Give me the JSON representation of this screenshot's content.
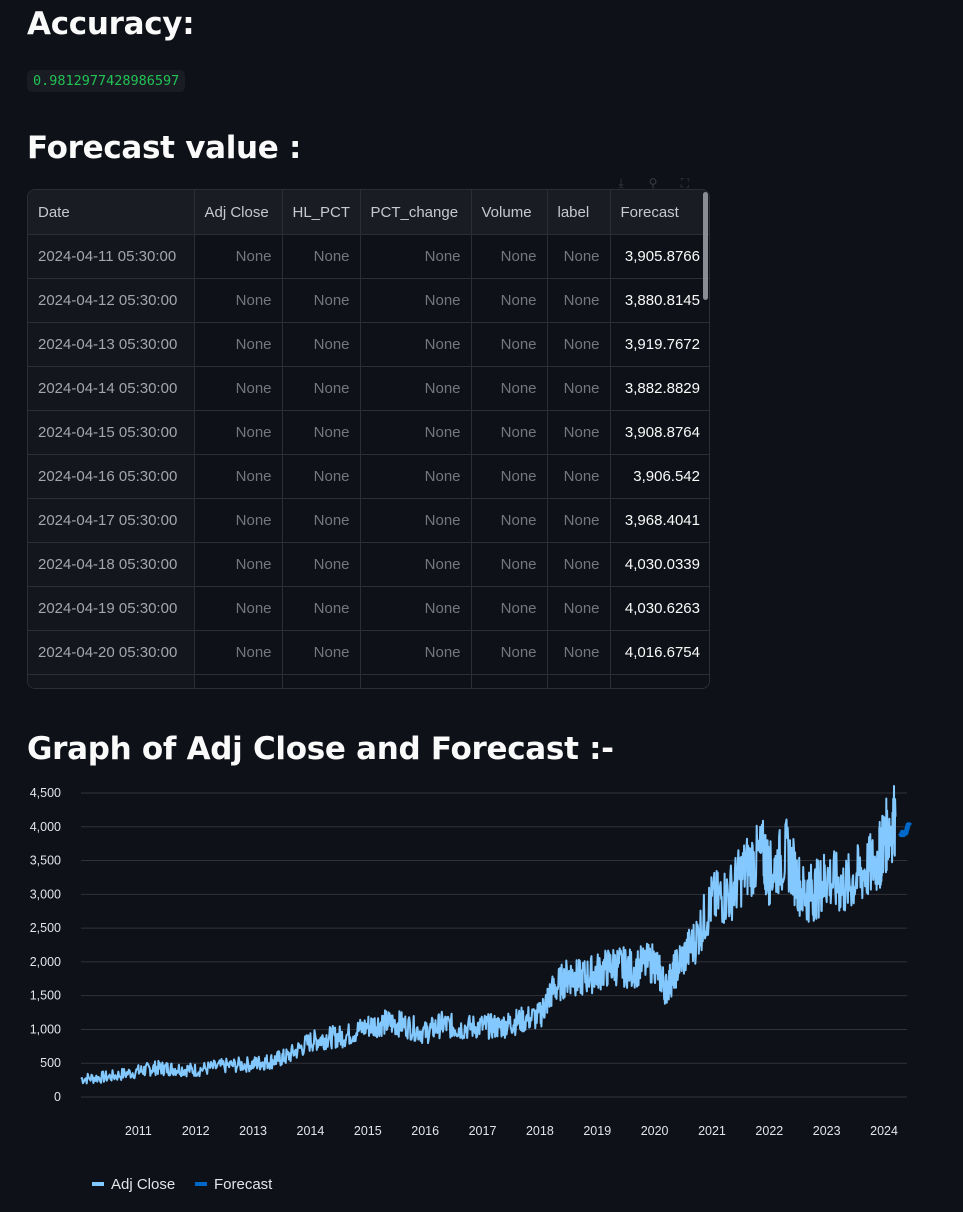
{
  "accuracy": {
    "heading": "Accuracy:",
    "value": "0.9812977428986597"
  },
  "forecast_table": {
    "heading": "Forecast value :",
    "toolbar_icons": [
      "download-icon",
      "search-icon",
      "fullscreen-icon"
    ],
    "columns": [
      "Date",
      "Adj Close",
      "HL_PCT",
      "PCT_change",
      "Volume",
      "label",
      "Forecast"
    ],
    "rows": [
      [
        "2024-04-11 05:30:00",
        "None",
        "None",
        "None",
        "None",
        "None",
        "3,905.8766"
      ],
      [
        "2024-04-12 05:30:00",
        "None",
        "None",
        "None",
        "None",
        "None",
        "3,880.8145"
      ],
      [
        "2024-04-13 05:30:00",
        "None",
        "None",
        "None",
        "None",
        "None",
        "3,919.7672"
      ],
      [
        "2024-04-14 05:30:00",
        "None",
        "None",
        "None",
        "None",
        "None",
        "3,882.8829"
      ],
      [
        "2024-04-15 05:30:00",
        "None",
        "None",
        "None",
        "None",
        "None",
        "3,908.8764"
      ],
      [
        "2024-04-16 05:30:00",
        "None",
        "None",
        "None",
        "None",
        "None",
        "3,906.542"
      ],
      [
        "2024-04-17 05:30:00",
        "None",
        "None",
        "None",
        "None",
        "None",
        "3,968.4041"
      ],
      [
        "2024-04-18 05:30:00",
        "None",
        "None",
        "None",
        "None",
        "None",
        "4,030.0339"
      ],
      [
        "2024-04-19 05:30:00",
        "None",
        "None",
        "None",
        "None",
        "None",
        "4,030.6263"
      ],
      [
        "2024-04-20 05:30:00",
        "None",
        "None",
        "None",
        "None",
        "None",
        "4,016.6754"
      ]
    ]
  },
  "graph": {
    "heading": "Graph of Adj Close and Forecast :-"
  },
  "chart_data": {
    "type": "line",
    "title": "",
    "xlabel": "",
    "ylabel": "",
    "ylim": [
      0,
      4500
    ],
    "y_ticks": [
      "0",
      "500",
      "1,000",
      "1,500",
      "2,000",
      "2,500",
      "3,000",
      "3,500",
      "4,000",
      "4,500"
    ],
    "x_ticks": [
      "2011",
      "2012",
      "2013",
      "2014",
      "2015",
      "2016",
      "2017",
      "2018",
      "2019",
      "2020",
      "2021",
      "2022",
      "2023",
      "2024"
    ],
    "legend_position": "bottom-left",
    "grid": true,
    "series": [
      {
        "name": "Adj Close",
        "color": "#83c9ff",
        "x": [
          2010.0,
          2010.5,
          2011.0,
          2011.3,
          2011.6,
          2012.0,
          2012.5,
          2013.0,
          2013.3,
          2013.6,
          2014.0,
          2014.3,
          2014.6,
          2015.0,
          2015.3,
          2015.6,
          2016.0,
          2016.3,
          2016.6,
          2017.0,
          2017.3,
          2017.6,
          2018.0,
          2018.2,
          2018.5,
          2018.7,
          2019.0,
          2019.3,
          2019.6,
          2020.0,
          2020.2,
          2020.4,
          2020.7,
          2021.0,
          2021.3,
          2021.6,
          2021.9,
          2022.0,
          2022.3,
          2022.6,
          2022.8,
          2023.0,
          2023.3,
          2023.6,
          2023.9,
          2024.0,
          2024.2
        ],
        "y": [
          270,
          300,
          380,
          430,
          420,
          400,
          460,
          490,
          530,
          600,
          820,
          880,
          900,
          1050,
          1100,
          1080,
          950,
          1080,
          1020,
          1050,
          1040,
          1120,
          1200,
          1550,
          1800,
          1750,
          1850,
          1950,
          1900,
          2000,
          1600,
          1950,
          2300,
          2900,
          3000,
          3400,
          3600,
          3300,
          3600,
          3000,
          3050,
          3250,
          3100,
          3300,
          3500,
          3800,
          4150
        ]
      },
      {
        "name": "Forecast",
        "color": "#0068c9",
        "x": [
          2024.28,
          2024.3,
          2024.32,
          2024.34,
          2024.36,
          2024.38,
          2024.4,
          2024.42,
          2024.44,
          2024.46
        ],
        "y": [
          3905.8766,
          3880.8145,
          3919.7672,
          3882.8829,
          3908.8764,
          3906.542,
          3968.4041,
          4030.0339,
          4030.6263,
          4016.6754
        ]
      }
    ]
  }
}
